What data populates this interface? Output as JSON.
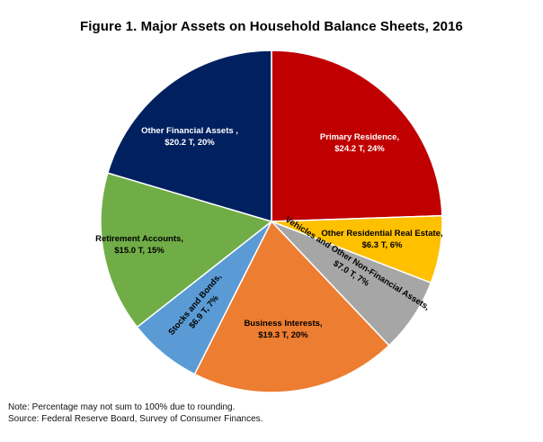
{
  "chart_data": {
    "type": "pie",
    "title": "Figure 1. Major Assets on Household Balance Sheets, 2016",
    "slices": [
      {
        "label": "Primary Residence,",
        "amount": "$24.2 T, 24%",
        "value": 24.2,
        "percent": 24,
        "color": "#c00000"
      },
      {
        "label": "Other Residential Real Estate,",
        "amount": "$6.3 T, 6%",
        "value": 6.3,
        "percent": 6,
        "color": "#ffc000"
      },
      {
        "label": "Vehicles and Other Non-Financial Assets,",
        "amount": "$7.0 T, 7%",
        "value": 7.0,
        "percent": 7,
        "color": "#a6a6a6"
      },
      {
        "label": "Business Interests,",
        "amount": "$19.3 T, 20%",
        "value": 19.3,
        "percent": 20,
        "color": "#ed7d31"
      },
      {
        "label": "Stocks and Bonds,",
        "amount": "$6.9 T, 7%",
        "value": 6.9,
        "percent": 7,
        "color": "#5b9bd5"
      },
      {
        "label": "Retirement Accounts,",
        "amount": "$15.0 T, 15%",
        "value": 15.0,
        "percent": 15,
        "color": "#70ad47"
      },
      {
        "label": "Other Financial Assets ,",
        "amount": "$20.2 T, 20%",
        "value": 20.2,
        "percent": 20,
        "color": "#002060"
      }
    ]
  },
  "notes": {
    "line1": "Note: Percentage may not sum to 100% due to rounding.",
    "line2": "Source: Federal Reserve Board, Survey of Consumer Finances."
  }
}
